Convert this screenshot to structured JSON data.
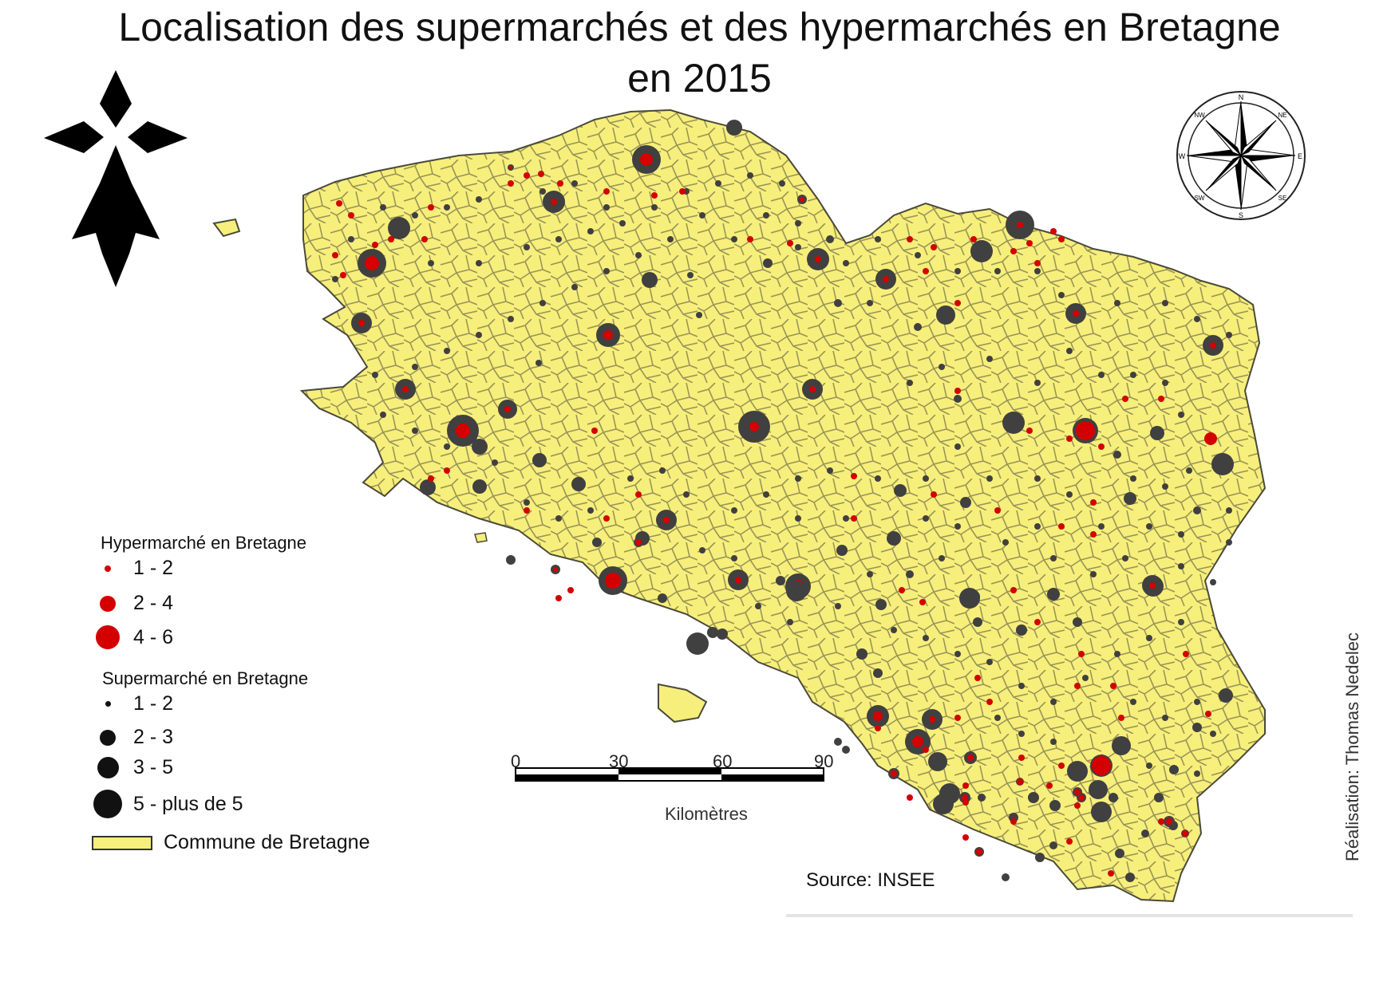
{
  "title": {
    "line1": "Localisation des supermarchés et des hypermarchés en Bretagne",
    "line2": "en 2015"
  },
  "colors": {
    "commune_fill": "#f7ef7b",
    "commune_border": "#4a4a3a",
    "hypermarche": "#d40000",
    "supermarche": "#404040"
  },
  "legend": {
    "hyper_title": "Hypermarché en Bretagne",
    "hyper_classes": [
      "1 - 2",
      "2 - 4",
      "4 - 6"
    ],
    "super_title": "Supermarché en Bretagne",
    "super_classes": [
      "1 - 2",
      "2 - 3",
      "3 - 5",
      "5 - plus de 5"
    ],
    "commune_label": "Commune de Bretagne"
  },
  "scale_bar": {
    "ticks": [
      "0",
      "30",
      "60",
      "90"
    ],
    "unit": "Kilomètres"
  },
  "compass": {
    "labels": [
      "N",
      "NE",
      "E",
      "SE",
      "S",
      "SW",
      "W",
      "NW"
    ]
  },
  "source": "Source: INSEE",
  "credit": "Réalisation: Thomas Nedelec",
  "icons": [
    "hermine-icon",
    "compass-rose-icon"
  ]
}
